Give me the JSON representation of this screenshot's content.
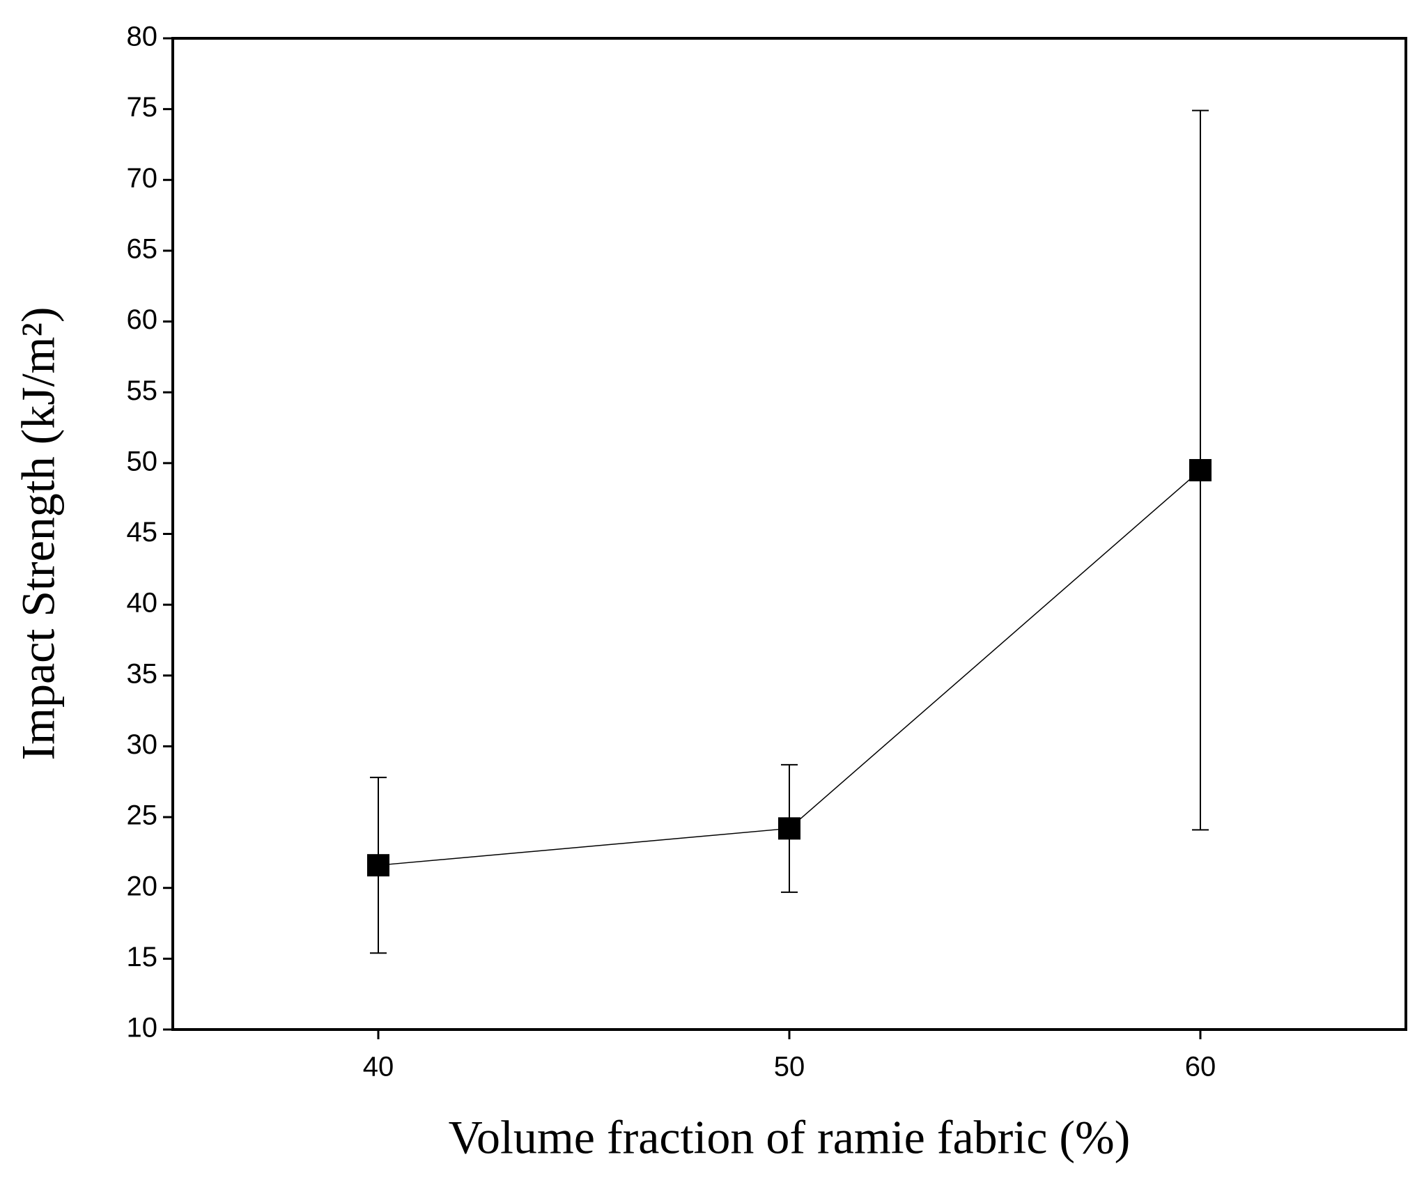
{
  "chart_data": {
    "type": "line",
    "x_label": "Volume fraction of ramie fabric (%)",
    "y_label": "Impact Strength (kJ/m²)",
    "x": [
      40,
      50,
      60
    ],
    "values": [
      21.6,
      24.2,
      49.5
    ],
    "errors": [
      6.2,
      4.5,
      25.4
    ],
    "color": "#000000",
    "xlim": [
      35,
      65
    ],
    "xticks": [
      40,
      50,
      60
    ],
    "ylim": [
      10,
      80
    ],
    "yticks": [
      10,
      15,
      20,
      25,
      30,
      35,
      40,
      45,
      50,
      55,
      60,
      65,
      70,
      75,
      80
    ],
    "grid": false
  }
}
